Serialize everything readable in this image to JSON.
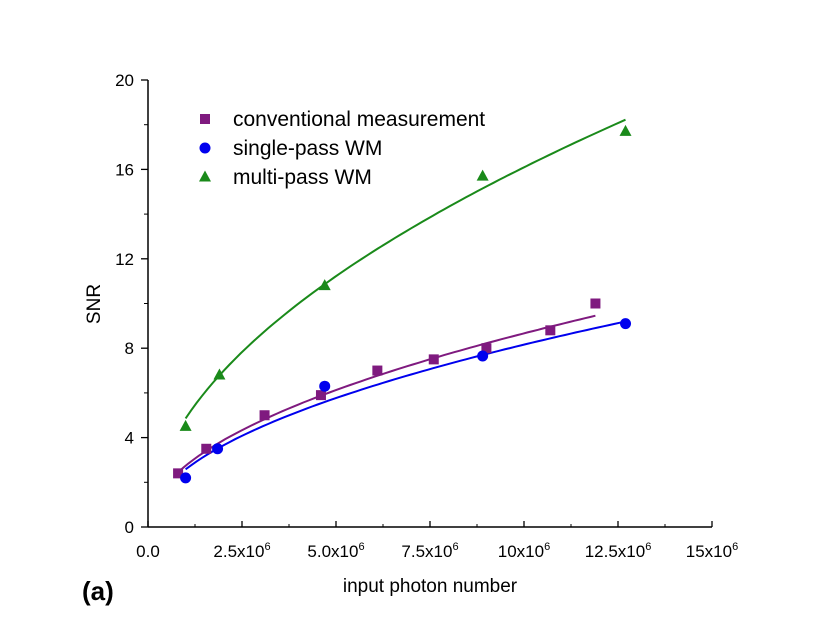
{
  "chart_data": {
    "type": "scatter",
    "panel_label": "(a)",
    "xlabel": "input photon number",
    "ylabel": "SNR",
    "xlim": [
      0,
      15000000
    ],
    "ylim": [
      0,
      20
    ],
    "x_ticks": [
      {
        "value": 0,
        "mantissa": "0.0",
        "exponent": ""
      },
      {
        "value": 2500000,
        "mantissa": "2.5x10",
        "exponent": "6"
      },
      {
        "value": 5000000,
        "mantissa": "5.0x10",
        "exponent": "6"
      },
      {
        "value": 7500000,
        "mantissa": "7.5x10",
        "exponent": "6"
      },
      {
        "value": 10000000,
        "mantissa": "10x10",
        "exponent": "6"
      },
      {
        "value": 12500000,
        "mantissa": "12.5x10",
        "exponent": "6"
      },
      {
        "value": 15000000,
        "mantissa": "15x10",
        "exponent": "6"
      }
    ],
    "y_ticks": [
      0,
      4,
      8,
      12,
      16,
      20
    ],
    "legend_position": "top-left",
    "series": [
      {
        "name": "conventional measurement",
        "color": "#7f1a7f",
        "marker": "square",
        "x": [
          800000,
          1550000,
          3100000,
          4600000,
          6100000,
          7600000,
          9000000,
          10700000,
          11900000
        ],
        "y": [
          2.4,
          3.5,
          5.0,
          5.9,
          7.0,
          7.5,
          8.0,
          8.8,
          10.0
        ],
        "fit": {
          "a": 2.74,
          "b": 0.5,
          "x_range": [
            800000,
            11900000
          ]
        }
      },
      {
        "name": "single-pass WM",
        "color": "#0000ee",
        "marker": "circle",
        "x": [
          1000000,
          1850000,
          4700000,
          8900000,
          12700000
        ],
        "y": [
          2.2,
          3.5,
          6.3,
          7.65,
          9.1
        ],
        "fit": {
          "a": 2.58,
          "b": 0.5,
          "x_range": [
            1000000,
            12700000
          ]
        }
      },
      {
        "name": "multi-pass WM",
        "color": "#1a8a1a",
        "marker": "triangle",
        "x": [
          1000000,
          1900000,
          4700000,
          8900000,
          12700000
        ],
        "y": [
          4.5,
          6.8,
          10.8,
          15.7,
          17.7
        ],
        "fit": {
          "a": 4.86,
          "b": 0.52,
          "x_range": [
            1000000,
            12700000
          ]
        }
      }
    ]
  }
}
